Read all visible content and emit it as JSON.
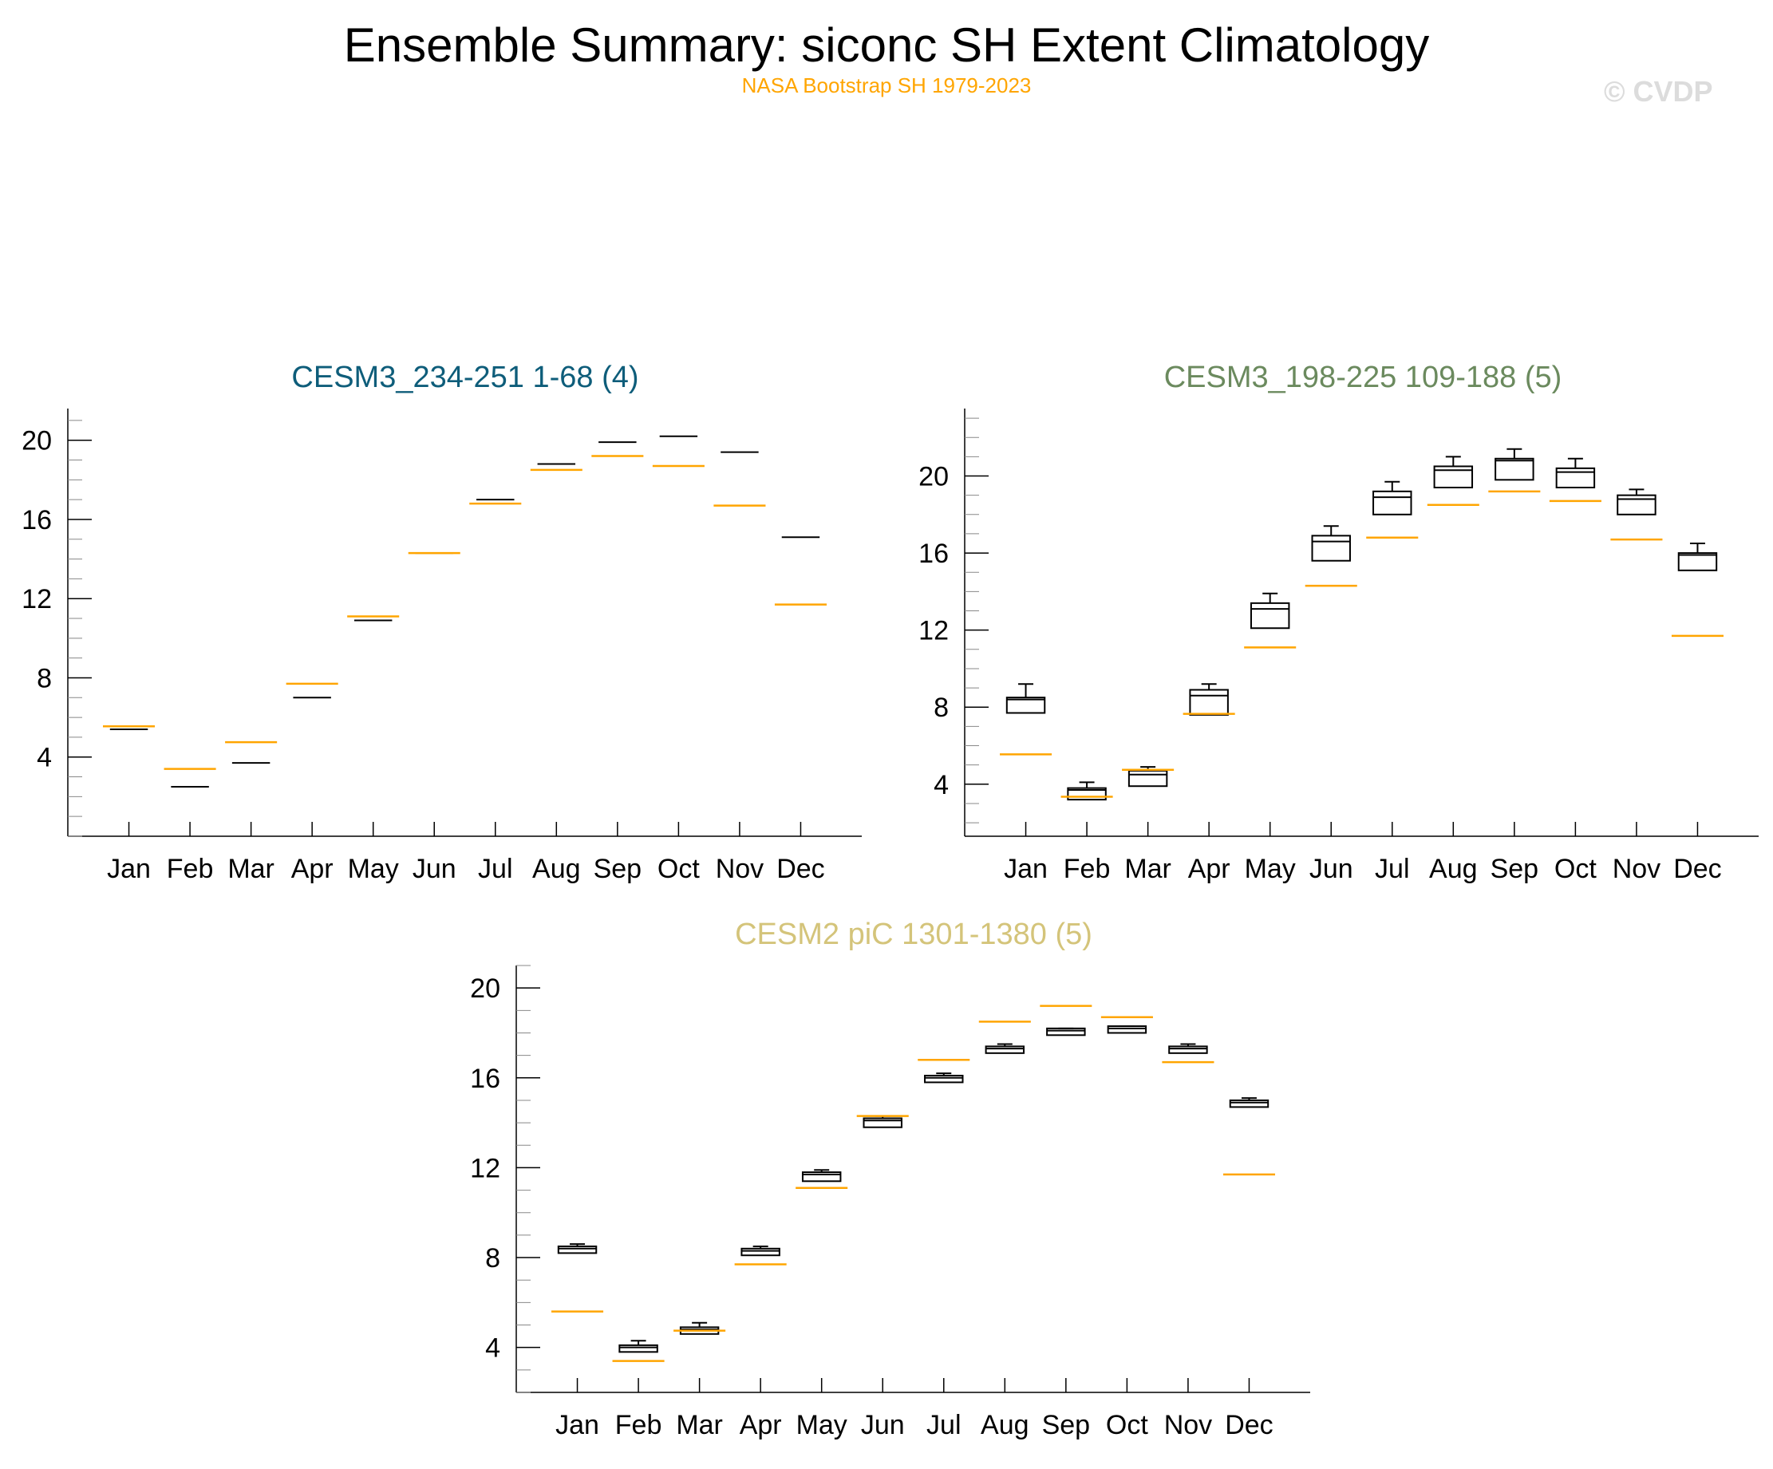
{
  "title": "Ensemble Summary: siconc SH Extent Climatology",
  "subtitle": "NASA Bootstrap SH 1979-2023",
  "watermark": "© CVDP",
  "colors": {
    "observations": "#ffa500",
    "boxes": "#000000"
  },
  "chart_data": [
    {
      "type": "boxplot",
      "title": "CESM3_234-251 1-68 (4)",
      "title_color": "#0e5d7a",
      "categories": [
        "Jan",
        "Feb",
        "Mar",
        "Apr",
        "May",
        "Jun",
        "Jul",
        "Aug",
        "Sep",
        "Oct",
        "Nov",
        "Dec"
      ],
      "yticks": [
        4,
        8,
        12,
        16,
        20
      ],
      "ylim": [
        0,
        21.6
      ],
      "boxes": [
        {
          "min": 5.4,
          "q1": 5.4,
          "median": 5.4,
          "q3": 5.4,
          "max": 5.4
        },
        {
          "min": 2.5,
          "q1": 2.5,
          "median": 2.5,
          "q3": 2.5,
          "max": 2.5
        },
        {
          "min": 3.7,
          "q1": 3.7,
          "median": 3.7,
          "q3": 3.7,
          "max": 3.7
        },
        {
          "min": 7.0,
          "q1": 7.0,
          "median": 7.0,
          "q3": 7.0,
          "max": 7.0
        },
        {
          "min": 10.9,
          "q1": 10.9,
          "median": 10.9,
          "q3": 10.9,
          "max": 10.9
        },
        {
          "min": 14.3,
          "q1": 14.3,
          "median": 14.3,
          "q3": 14.3,
          "max": 14.3
        },
        {
          "min": 17.0,
          "q1": 17.0,
          "median": 17.0,
          "q3": 17.0,
          "max": 17.0
        },
        {
          "min": 18.8,
          "q1": 18.8,
          "median": 18.8,
          "q3": 18.8,
          "max": 18.8
        },
        {
          "min": 19.9,
          "q1": 19.9,
          "median": 19.9,
          "q3": 19.9,
          "max": 19.9
        },
        {
          "min": 20.2,
          "q1": 20.2,
          "median": 20.2,
          "q3": 20.2,
          "max": 20.2
        },
        {
          "min": 19.4,
          "q1": 19.4,
          "median": 19.4,
          "q3": 19.4,
          "max": 19.4
        },
        {
          "min": 15.1,
          "q1": 15.1,
          "median": 15.1,
          "q3": 15.1,
          "max": 15.1
        }
      ],
      "observations": [
        5.55,
        3.4,
        4.75,
        7.7,
        11.1,
        14.3,
        16.8,
        18.5,
        19.2,
        18.7,
        16.7,
        11.7
      ]
    },
    {
      "type": "boxplot",
      "title": "CESM3_198-225 109-188 (5)",
      "title_color": "#6b8a5e",
      "categories": [
        "Jan",
        "Feb",
        "Mar",
        "Apr",
        "May",
        "Jun",
        "Jul",
        "Aug",
        "Sep",
        "Oct",
        "Nov",
        "Dec"
      ],
      "yticks": [
        4,
        8,
        12,
        16,
        20
      ],
      "ylim": [
        1.3,
        23.5
      ],
      "boxes": [
        {
          "min": 7.7,
          "q1": 7.7,
          "median": 8.4,
          "q3": 8.5,
          "max": 9.2
        },
        {
          "min": 3.2,
          "q1": 3.2,
          "median": 3.7,
          "q3": 3.8,
          "max": 4.1
        },
        {
          "min": 3.9,
          "q1": 3.9,
          "median": 4.5,
          "q3": 4.7,
          "max": 4.9
        },
        {
          "min": 7.6,
          "q1": 7.6,
          "median": 8.6,
          "q3": 8.9,
          "max": 9.2
        },
        {
          "min": 12.1,
          "q1": 12.1,
          "median": 13.1,
          "q3": 13.4,
          "max": 13.9
        },
        {
          "min": 15.6,
          "q1": 15.6,
          "median": 16.6,
          "q3": 16.9,
          "max": 17.4
        },
        {
          "min": 18.0,
          "q1": 18.0,
          "median": 18.9,
          "q3": 19.2,
          "max": 19.7
        },
        {
          "min": 19.4,
          "q1": 19.4,
          "median": 20.3,
          "q3": 20.5,
          "max": 21.0
        },
        {
          "min": 19.8,
          "q1": 19.8,
          "median": 20.8,
          "q3": 20.9,
          "max": 21.4
        },
        {
          "min": 19.4,
          "q1": 19.4,
          "median": 20.2,
          "q3": 20.4,
          "max": 20.9
        },
        {
          "min": 18.0,
          "q1": 18.0,
          "median": 18.8,
          "q3": 19.0,
          "max": 19.3
        },
        {
          "min": 15.1,
          "q1": 15.1,
          "median": 15.9,
          "q3": 16.0,
          "max": 16.5
        }
      ],
      "observations": [
        5.55,
        3.35,
        4.75,
        7.65,
        11.1,
        14.3,
        16.8,
        18.5,
        19.2,
        18.7,
        16.7,
        11.7
      ]
    },
    {
      "type": "boxplot",
      "title": "CESM2 piC 1301-1380 (5)",
      "title_color": "#d4c47a",
      "categories": [
        "Jan",
        "Feb",
        "Mar",
        "Apr",
        "May",
        "Jun",
        "Jul",
        "Aug",
        "Sep",
        "Oct",
        "Nov",
        "Dec"
      ],
      "yticks": [
        4,
        8,
        12,
        16,
        20
      ],
      "ylim": [
        2,
        21
      ]
    }
  ]
}
